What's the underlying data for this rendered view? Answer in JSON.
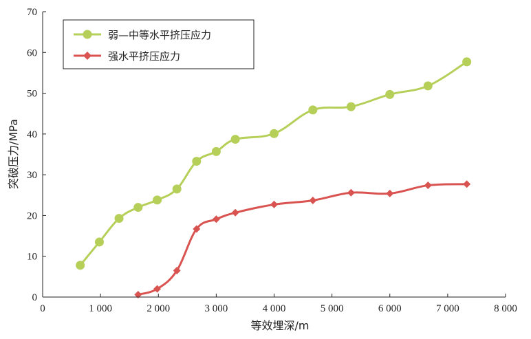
{
  "chart_data": {
    "type": "line",
    "xlabel": "等效埋深/m",
    "ylabel": "突破压力/MPa",
    "xlim": [
      0,
      8000
    ],
    "ylim": [
      0,
      70
    ],
    "xticks": [
      0,
      1000,
      2000,
      3000,
      4000,
      5000,
      6000,
      7000,
      8000
    ],
    "xtick_labels": [
      "0",
      "1 000",
      "2 000",
      "3 000",
      "4 000",
      "5 000",
      "6 000",
      "7 000",
      "8 000"
    ],
    "yticks": [
      0,
      10,
      20,
      30,
      40,
      50,
      60,
      70
    ],
    "ytick_labels": [
      "0",
      "10",
      "20",
      "30",
      "40",
      "50",
      "60",
      "70"
    ],
    "grid": false,
    "legend_position": "top-left",
    "series": [
      {
        "name": "弱—中等水平挤压应力",
        "color": "#b5cf59",
        "marker": "circle",
        "x": [
          650,
          980,
          1320,
          1650,
          1980,
          2320,
          2660,
          3000,
          3330,
          4000,
          4670,
          5330,
          6000,
          6660,
          7330
        ],
        "y": [
          7.8,
          13.5,
          19.3,
          22.0,
          23.8,
          26.5,
          33.3,
          35.7,
          38.7,
          40.1,
          45.9,
          46.7,
          49.7,
          51.8,
          57.7
        ]
      },
      {
        "name": "强水平挤压应力",
        "color": "#d95350",
        "marker": "diamond",
        "x": [
          1650,
          1980,
          2320,
          2660,
          3000,
          3330,
          4000,
          4670,
          5330,
          6000,
          6660,
          7330
        ],
        "y": [
          0.6,
          2.0,
          6.5,
          16.7,
          19.1,
          20.7,
          22.7,
          23.7,
          25.6,
          25.4,
          27.4,
          27.7
        ]
      }
    ]
  }
}
